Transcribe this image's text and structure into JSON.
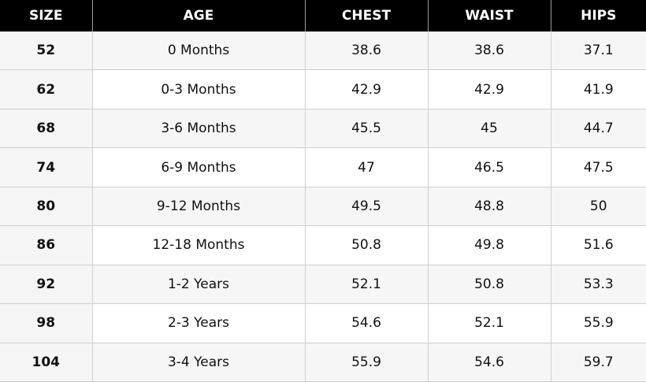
{
  "headers": [
    "SIZE",
    "AGE",
    "CHEST",
    "WAIST",
    "HIPS"
  ],
  "rows": [
    {
      "size": "52",
      "age": "0 Months",
      "chest": "38.6",
      "waist": "38.6",
      "hips": "37.1"
    },
    {
      "size": "62",
      "age": "0-3 Months",
      "chest": "42.9",
      "waist": "42.9",
      "hips": "41.9"
    },
    {
      "size": "68",
      "age": "3-6 Months",
      "chest": "45.5",
      "waist": "45",
      "hips": "44.7"
    },
    {
      "size": "74",
      "age": "6-9 Months",
      "chest": "47",
      "waist": "46.5",
      "hips": "47.5"
    },
    {
      "size": "80",
      "age": "9-12 Months",
      "chest": "49.5",
      "waist": "48.8",
      "hips": "50"
    },
    {
      "size": "86",
      "age": "12-18 Months",
      "chest": "50.8",
      "waist": "49.8",
      "hips": "51.6"
    },
    {
      "size": "92",
      "age": "1-2 Years",
      "chest": "52.1",
      "waist": "50.8",
      "hips": "53.3"
    },
    {
      "size": "98",
      "age": "2-3 Years",
      "chest": "54.6",
      "waist": "52.1",
      "hips": "55.9"
    },
    {
      "size": "104",
      "age": "3-4 Years",
      "chest": "55.9",
      "waist": "54.6",
      "hips": "59.7"
    }
  ],
  "colors": {
    "header_bg": "#000000",
    "header_text": "#ffffff",
    "stripe": "#f6f6f6",
    "grid": "#cfcfcf"
  }
}
